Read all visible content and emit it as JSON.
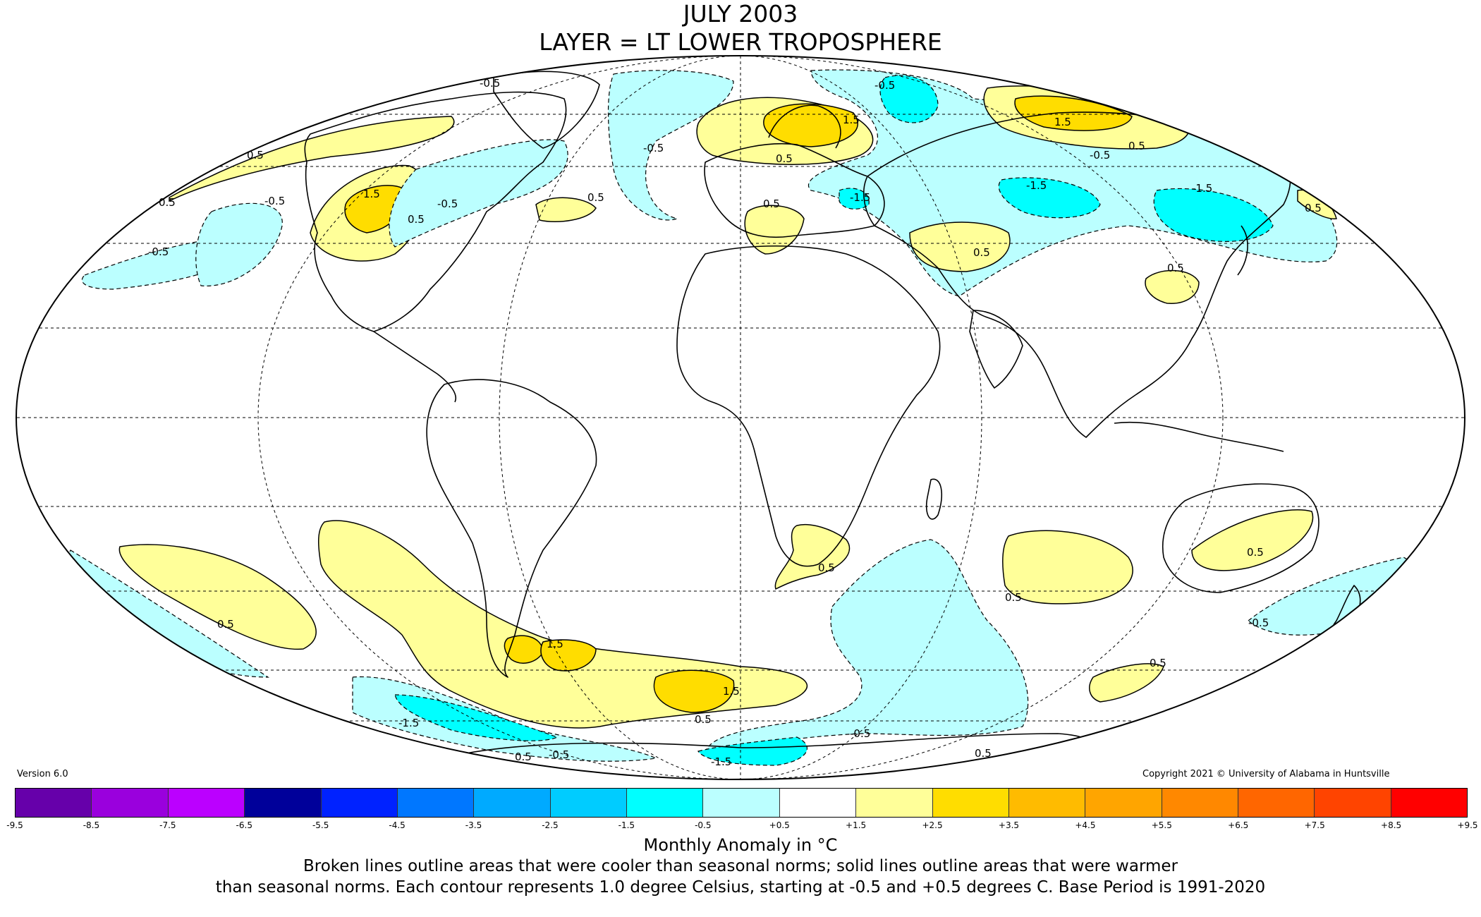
{
  "title": "JULY 2003",
  "subtitle": "LAYER = LT LOWER TROPOSPHERE",
  "version": "Version 6.0",
  "copyright": "Copyright 2021 © University of Alabama in Huntsville",
  "colorbar": {
    "ticks": [
      "-9.5",
      "-8.5",
      "-7.5",
      "-6.5",
      "-5.5",
      "-4.5",
      "-3.5",
      "-2.5",
      "-1.5",
      "-0.5",
      "+0.5",
      "+1.5",
      "+2.5",
      "+3.5",
      "+4.5",
      "+5.5",
      "+6.5",
      "+7.5",
      "+8.5",
      "+9.5"
    ],
    "colors": [
      "#3a0066",
      "#6600aa",
      "#9a00dd",
      "#bb00ff",
      "#00009a",
      "#0022ff",
      "#0077ff",
      "#00aaff",
      "#00ccff",
      "#00ffff",
      "#bbffff",
      "#ffffff",
      "#ffff99",
      "#ffdd00",
      "#ffbb00",
      "#ffa500",
      "#ff8800",
      "#ff6600",
      "#ff4400",
      "#ff0000",
      "#dd0000",
      "#bb0000"
    ],
    "label": "Monthly Anomaly in °C"
  },
  "notes": [
    "Broken lines outline areas that were cooler than seasonal norms; solid lines outline areas that were warmer",
    "than seasonal norms. Each contour represents 1.0 degree Celsius, starting at -0.5 and +0.5 degrees C. Base Period is 1991-2020"
  ],
  "contour_labels": [
    "-0.5",
    "-0.5",
    "-0.5",
    "-0.5",
    "-0.5",
    "-0.5",
    "-0.5",
    "-0.5",
    "-0.5",
    "-0.5",
    "0.5",
    "0.5",
    "0.5",
    "0.5",
    "0.5",
    "0.5",
    "0.5",
    "0.5",
    "0.5",
    "0.5",
    "0.5",
    "0.5",
    "0.5",
    "0.5",
    "0.5",
    "0.5",
    "0.5",
    "0.5",
    "1.5",
    "1.5",
    "1.5",
    "1.5",
    "1.5",
    "-1.5",
    "-1.5",
    "-1.5",
    "-1.5",
    "-1.5"
  ]
}
